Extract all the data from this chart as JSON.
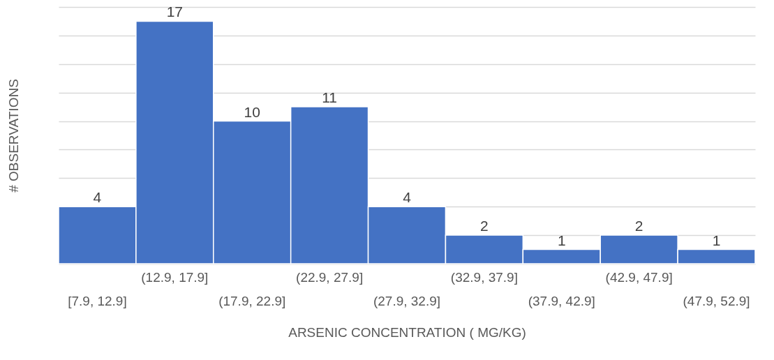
{
  "chart_data": {
    "type": "bar",
    "xlabel": "ARSENIC CONCENTRATION ( MG/KG)",
    "ylabel": "# OBSERVATIONS",
    "categories": [
      "[7.9, 12.9]",
      "(12.9, 17.9]",
      "(17.9, 22.9]",
      "(22.9, 27.9]",
      "(27.9, 32.9]",
      "(32.9, 37.9]",
      "(37.9, 42.9]",
      "(42.9, 47.9]",
      "(47.9, 52.9]"
    ],
    "values": [
      4,
      17,
      10,
      11,
      4,
      2,
      1,
      2,
      1
    ],
    "color": "#4472c4",
    "ylim": [
      0,
      18
    ],
    "yticks": [
      {
        "value": 0,
        "label": null
      },
      {
        "value": 2,
        "label": null
      },
      {
        "value": 4,
        "label": null
      },
      {
        "value": 6,
        "label": null
      },
      {
        "value": 8,
        "label": null
      },
      {
        "value": 10,
        "label": null
      },
      {
        "value": 12,
        "label": null
      },
      {
        "value": 14,
        "label": null
      },
      {
        "value": 16,
        "label": null
      },
      {
        "value": 18,
        "label": null
      }
    ],
    "tick_labels": "x",
    "grid": "y",
    "data_labels": true
  }
}
